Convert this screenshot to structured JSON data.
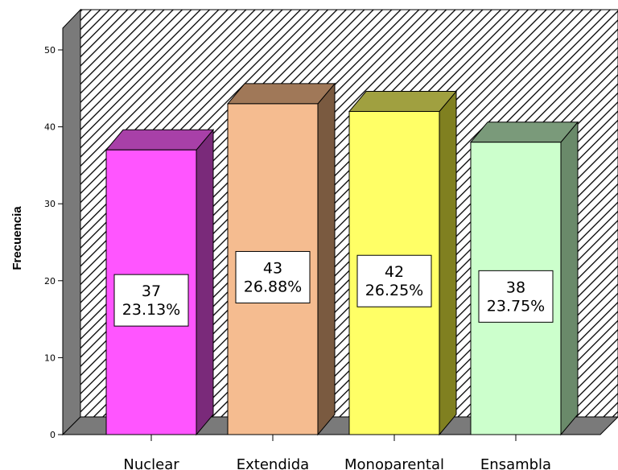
{
  "chart_data": {
    "type": "bar",
    "title": "",
    "xlabel": "",
    "ylabel": "Frecuencia",
    "ylim": [
      0,
      50
    ],
    "yticks": [
      0,
      10,
      20,
      30,
      40,
      50
    ],
    "categories": [
      "Nuclear",
      "Extendida",
      "Monoparental",
      "Ensambla"
    ],
    "values": [
      37,
      43,
      42,
      38
    ],
    "percent_labels": [
      "23.13%",
      "26.88%",
      "26.25%",
      "23.75%"
    ],
    "value_labels": [
      "37",
      "43",
      "42",
      "38"
    ],
    "bar_colors": [
      "#ff55ff",
      "#f5bc90",
      "#ffff66",
      "#ccffcc"
    ],
    "bar_side_colors": [
      "#7a2a7a",
      "#7a5a40",
      "#808020",
      "#6a8a6a"
    ],
    "bar_top_colors": [
      "#a840a8",
      "#a07858",
      "#a0a040",
      "#7a9a7a"
    ],
    "style": "3d",
    "background": "hatched",
    "grid": false,
    "legend": "none"
  }
}
